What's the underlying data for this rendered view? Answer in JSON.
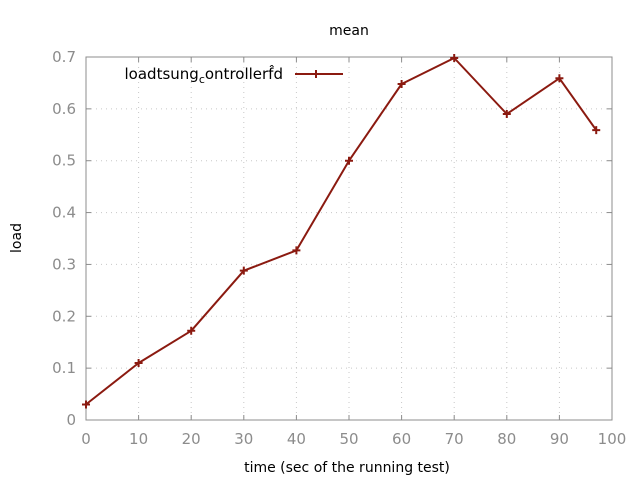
{
  "chart_data": {
    "type": "line",
    "title": "mean",
    "xlabel": "time (sec of the running test)",
    "ylabel": "load",
    "xlim": [
      0,
      100
    ],
    "ylim": [
      0,
      0.7
    ],
    "xticks": [
      "0",
      "10",
      "20",
      "30",
      "40",
      "50",
      "60",
      "70",
      "80",
      "90",
      "100"
    ],
    "yticks": [
      "0",
      "0.1",
      "0.2",
      "0.3",
      "0.4",
      "0.5",
      "0.6",
      "0.7"
    ],
    "grid": true,
    "legend_position": "top-left",
    "series": [
      {
        "name": "loadtsung_controller@d",
        "legend_display": {
          "main": "loadtsung",
          "sub": "c",
          "rest": "ontrollerf̂d"
        },
        "color": "#8b1a10",
        "marker": "plus",
        "x": [
          0,
          10,
          20,
          30,
          40,
          50,
          60,
          70,
          80,
          90,
          97
        ],
        "y": [
          0.03,
          0.11,
          0.172,
          0.288,
          0.327,
          0.5,
          0.648,
          0.698,
          0.59,
          0.659,
          0.559
        ]
      }
    ]
  }
}
